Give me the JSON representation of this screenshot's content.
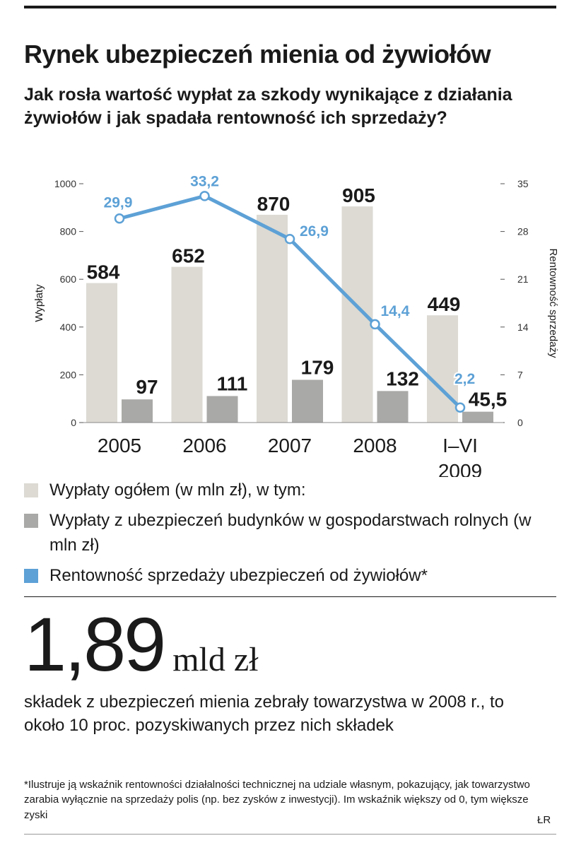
{
  "title": "Rynek ubezpieczeń mienia od żywiołów",
  "subtitle": "Jak rosła wartość wypłat za szkody wynikające z działania żywiołów i jak spadała rentowność ich sprzedaży?",
  "chart_data": {
    "type": "bar",
    "categories": [
      [
        "2005"
      ],
      [
        "2006"
      ],
      [
        "2007"
      ],
      [
        "2008"
      ],
      [
        "I–VI",
        "2009"
      ]
    ],
    "series": [
      {
        "name": "Wypłaty ogółem (w mln zł), w tym:",
        "axis": "left",
        "color": "#dcdad3",
        "values": [
          584,
          652,
          870,
          905,
          449
        ],
        "labels": [
          "584",
          "652",
          "870",
          "905",
          "449"
        ]
      },
      {
        "name": "Wypłaty z ubezpieczeń budynków w gospodarstwach rolnych (w mln zł)",
        "axis": "left",
        "color": "#a9a9a7",
        "values": [
          97,
          111,
          179,
          132,
          45.5
        ],
        "labels": [
          "97",
          "111",
          "179",
          "132",
          "45,5"
        ]
      },
      {
        "name": "Rentowność sprzedaży ubezpieczeń od żywiołów*",
        "axis": "right",
        "type": "line",
        "color": "#5da1d6",
        "values": [
          29.9,
          33.2,
          26.9,
          14.4,
          2.2
        ],
        "labels": [
          "29,9",
          "33,2",
          "26,9",
          "14,4",
          "2,2"
        ]
      }
    ],
    "ylabel": "Wypłaty",
    "ylim": [
      0,
      1000
    ],
    "yticks": [
      0,
      200,
      400,
      600,
      800,
      1000
    ],
    "y2label": "Rentowność sprzedaży",
    "y2lim": [
      0,
      35
    ],
    "y2ticks": [
      0,
      7,
      14,
      21,
      28,
      35
    ]
  },
  "highlight": {
    "value": "1,89",
    "unit": "mld zł",
    "text": "składek z ubezpieczeń mienia zebrały towarzystwa w 2008 r., to około 10 proc. pozyskiwanych przez nich składek"
  },
  "footnote": "*Ilustruje ją wskaźnik rentowności działalności technicznej na udziale własnym, pokazujący, jak towarzystwo zarabia wyłącznie na sprzedaży polis (np. bez zysków z inwestycji). Im wskaźnik większy od 0, tym większe zyski",
  "author": "ŁR"
}
